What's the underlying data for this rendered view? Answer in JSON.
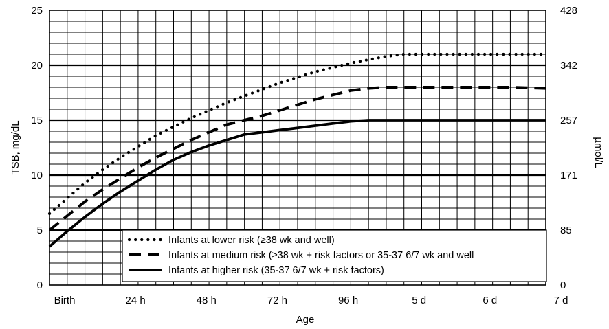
{
  "chart_data": {
    "type": "line",
    "xlabel": "Age",
    "ylabel": "TSB, mg/dL",
    "y2label": "µmol/L",
    "x_unit": "hours",
    "xlim": [
      0,
      168
    ],
    "ylim": [
      0,
      25
    ],
    "x_ticks": [
      {
        "x": 0,
        "label": "Birth"
      },
      {
        "x": 24,
        "label": "24 h"
      },
      {
        "x": 48,
        "label": "48 h"
      },
      {
        "x": 72,
        "label": "72 h"
      },
      {
        "x": 96,
        "label": "96 h"
      },
      {
        "x": 120,
        "label": "5 d"
      },
      {
        "x": 144,
        "label": "6 d"
      },
      {
        "x": 168,
        "label": "7 d"
      }
    ],
    "y_ticks": [
      {
        "y": 0,
        "label": "0"
      },
      {
        "y": 5,
        "label": "5"
      },
      {
        "y": 10,
        "label": "10"
      },
      {
        "y": 15,
        "label": "15"
      },
      {
        "y": 20,
        "label": "20"
      },
      {
        "y": 25,
        "label": "25"
      }
    ],
    "y2_ticks": [
      {
        "y": 0,
        "label": "0"
      },
      {
        "y": 5,
        "label": "85"
      },
      {
        "y": 10,
        "label": "171"
      },
      {
        "y": 15,
        "label": "257"
      },
      {
        "y": 20,
        "label": "342"
      },
      {
        "y": 25,
        "label": "428"
      }
    ],
    "grid": {
      "x_step": 6,
      "y_step": 1,
      "major_y": [
        5,
        10,
        15,
        20
      ]
    },
    "legend_position": "bottom-right",
    "series": [
      {
        "name": "Infants at lower risk (≥38 wk and well)",
        "style": "dotted",
        "x": [
          0,
          6,
          12,
          18,
          24,
          30,
          36,
          42,
          48,
          54,
          60,
          66,
          72,
          78,
          84,
          90,
          96,
          102,
          108,
          114,
          120,
          132,
          144,
          156,
          168
        ],
        "values": [
          6.5,
          7.9,
          9.3,
          10.5,
          11.6,
          12.6,
          13.6,
          14.4,
          15.2,
          15.9,
          16.6,
          17.2,
          17.8,
          18.4,
          18.9,
          19.4,
          19.8,
          20.2,
          20.5,
          20.8,
          21.0,
          21.0,
          21.0,
          21.0,
          21.0
        ]
      },
      {
        "name": "Infants at medium risk (≥38 wk + risk factors or 35-37 6/7 wk and well",
        "style": "dashed",
        "x": [
          0,
          6,
          12,
          18,
          24,
          30,
          36,
          42,
          48,
          54,
          60,
          66,
          72,
          78,
          84,
          90,
          96,
          102,
          108,
          114,
          120,
          132,
          144,
          156,
          168
        ],
        "values": [
          5.0,
          6.3,
          7.6,
          8.7,
          9.7,
          10.7,
          11.6,
          12.4,
          13.2,
          13.9,
          14.6,
          15.0,
          15.4,
          15.9,
          16.4,
          16.9,
          17.3,
          17.7,
          17.9,
          18.0,
          18.0,
          18.0,
          18.0,
          18.0,
          17.9
        ]
      },
      {
        "name": "Infants at higher risk (35-37 6/7 wk + risk factors)",
        "style": "solid",
        "x": [
          0,
          6,
          12,
          18,
          24,
          30,
          36,
          42,
          48,
          54,
          60,
          66,
          72,
          78,
          84,
          90,
          96,
          102,
          108,
          114,
          120,
          132,
          144,
          156,
          168
        ],
        "values": [
          3.5,
          4.9,
          6.2,
          7.4,
          8.5,
          9.5,
          10.5,
          11.4,
          12.1,
          12.7,
          13.2,
          13.7,
          13.9,
          14.1,
          14.3,
          14.5,
          14.7,
          14.9,
          15.0,
          15.0,
          15.0,
          15.0,
          15.0,
          15.0,
          15.0
        ]
      }
    ]
  }
}
